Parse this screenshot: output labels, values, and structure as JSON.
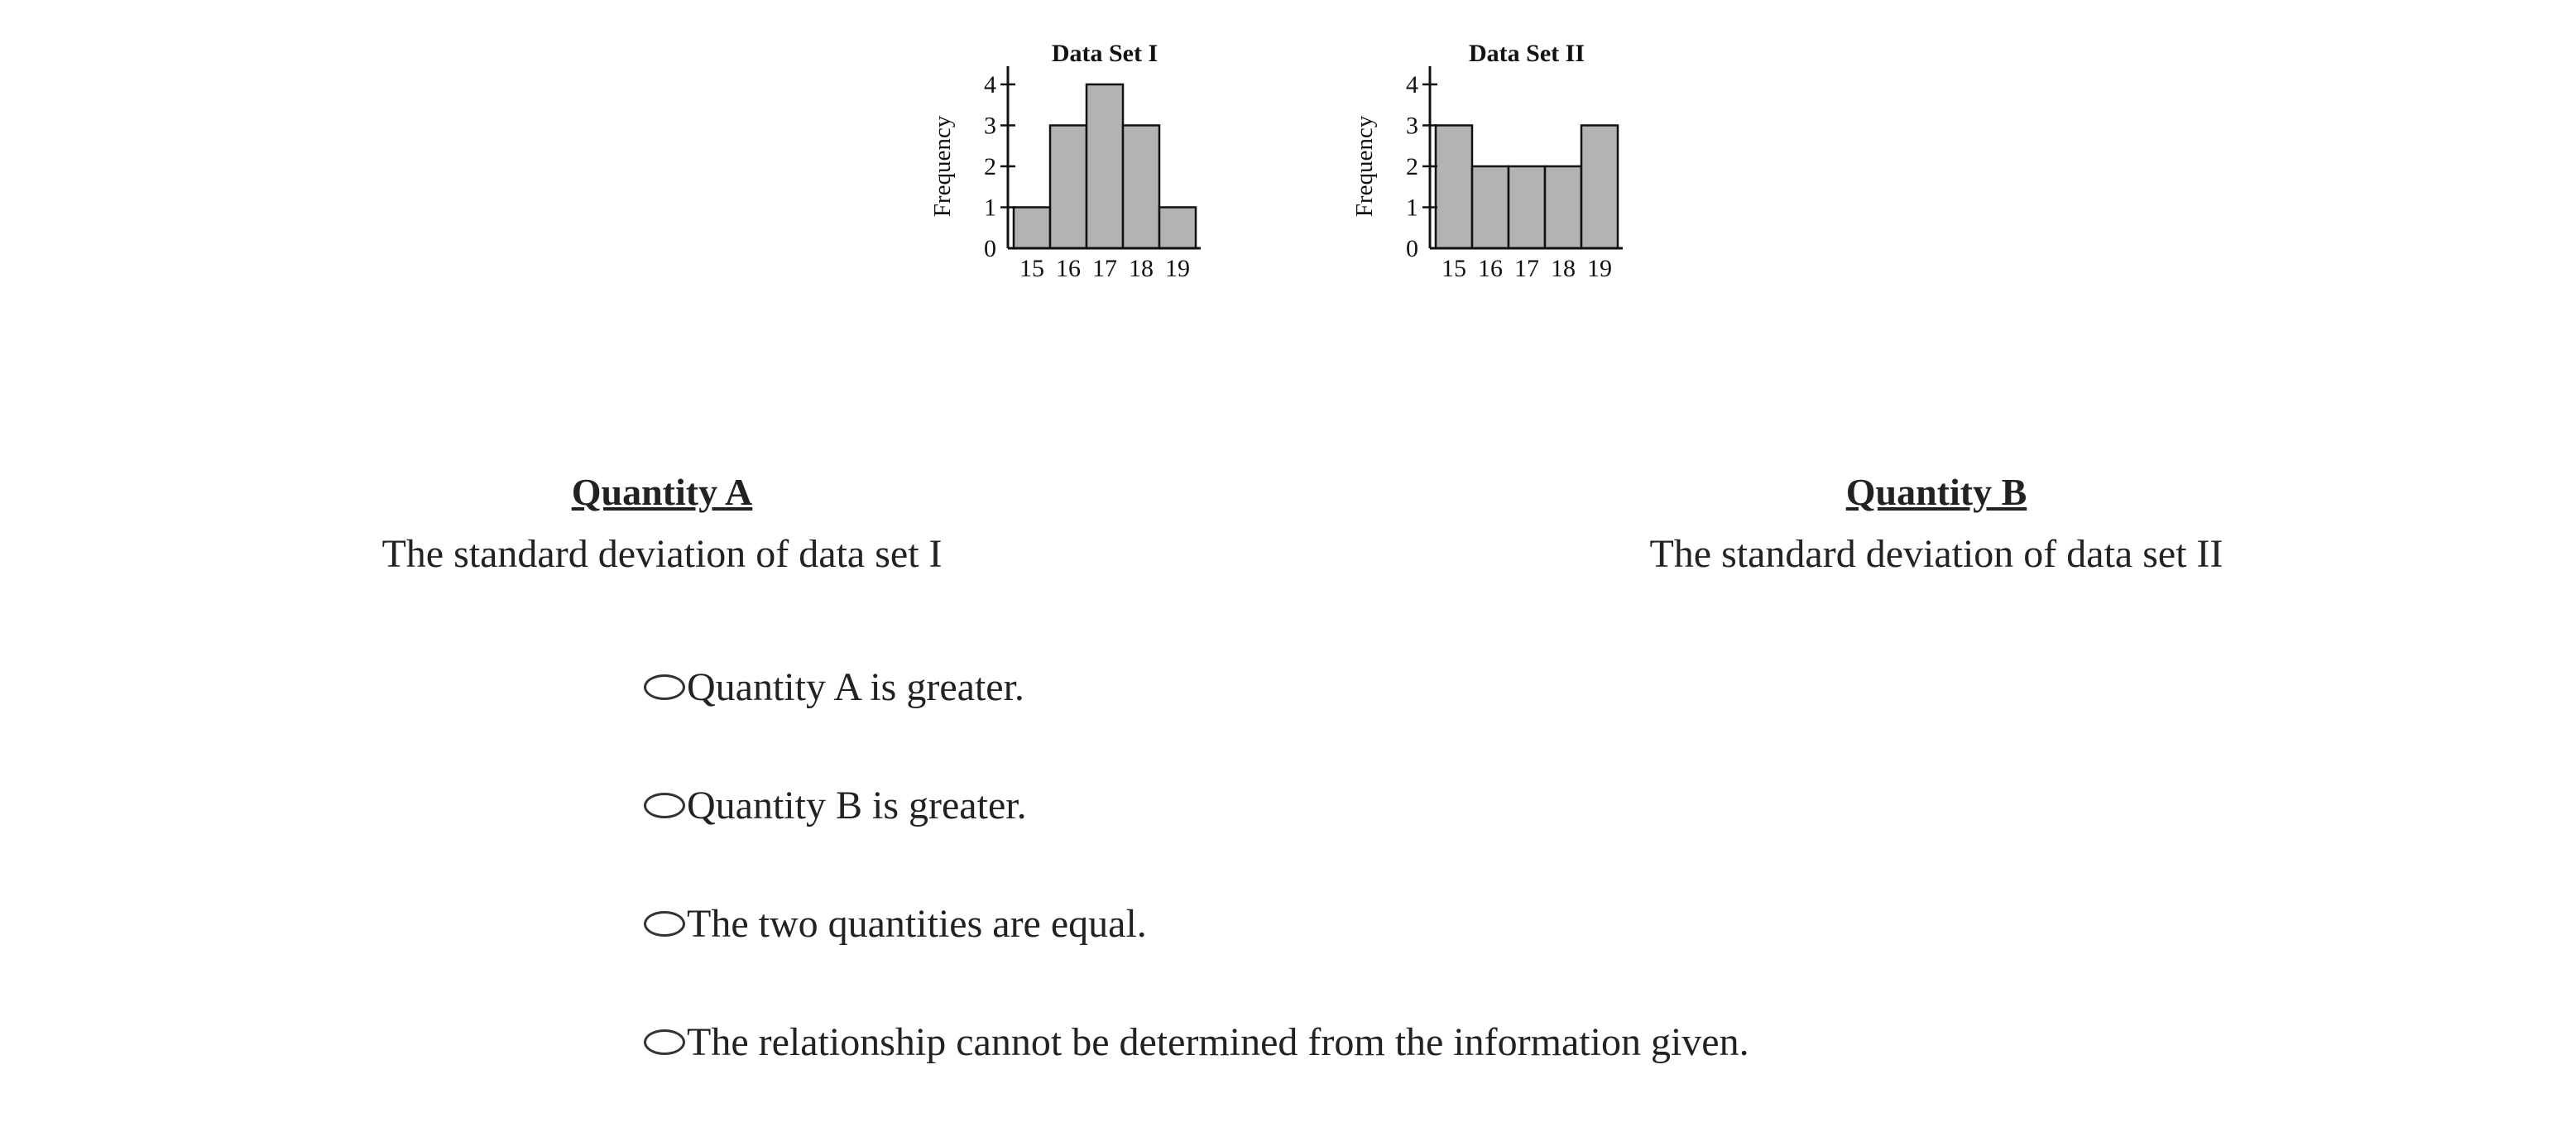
{
  "chart_data": [
    {
      "type": "bar",
      "title": "Data Set I",
      "ylabel": "Frequency",
      "xlabel": "",
      "categories": [
        "15",
        "16",
        "17",
        "18",
        "19"
      ],
      "values": [
        1,
        3,
        4,
        3,
        1
      ],
      "ylim": [
        0,
        4
      ],
      "yticks": [
        "0",
        "1",
        "2",
        "3",
        "4"
      ],
      "bar_color": "#b3b3b3",
      "grid": false
    },
    {
      "type": "bar",
      "title": "Data Set II",
      "ylabel": "Frequency",
      "xlabel": "",
      "categories": [
        "15",
        "16",
        "17",
        "18",
        "19"
      ],
      "values": [
        3,
        2,
        2,
        2,
        3
      ],
      "ylim": [
        0,
        4
      ],
      "yticks": [
        "0",
        "1",
        "2",
        "3",
        "4"
      ],
      "bar_color": "#b3b3b3",
      "grid": false
    }
  ],
  "quantity_a": {
    "heading": "Quantity A",
    "text": "The standard deviation of data set I"
  },
  "quantity_b": {
    "heading": "Quantity B",
    "text": "The standard deviation of data set II"
  },
  "options": [
    {
      "label": "Quantity A is greater."
    },
    {
      "label": "Quantity B is greater."
    },
    {
      "label": "The two quantities are equal."
    },
    {
      "label": "The relationship cannot be determined from the information given."
    }
  ]
}
